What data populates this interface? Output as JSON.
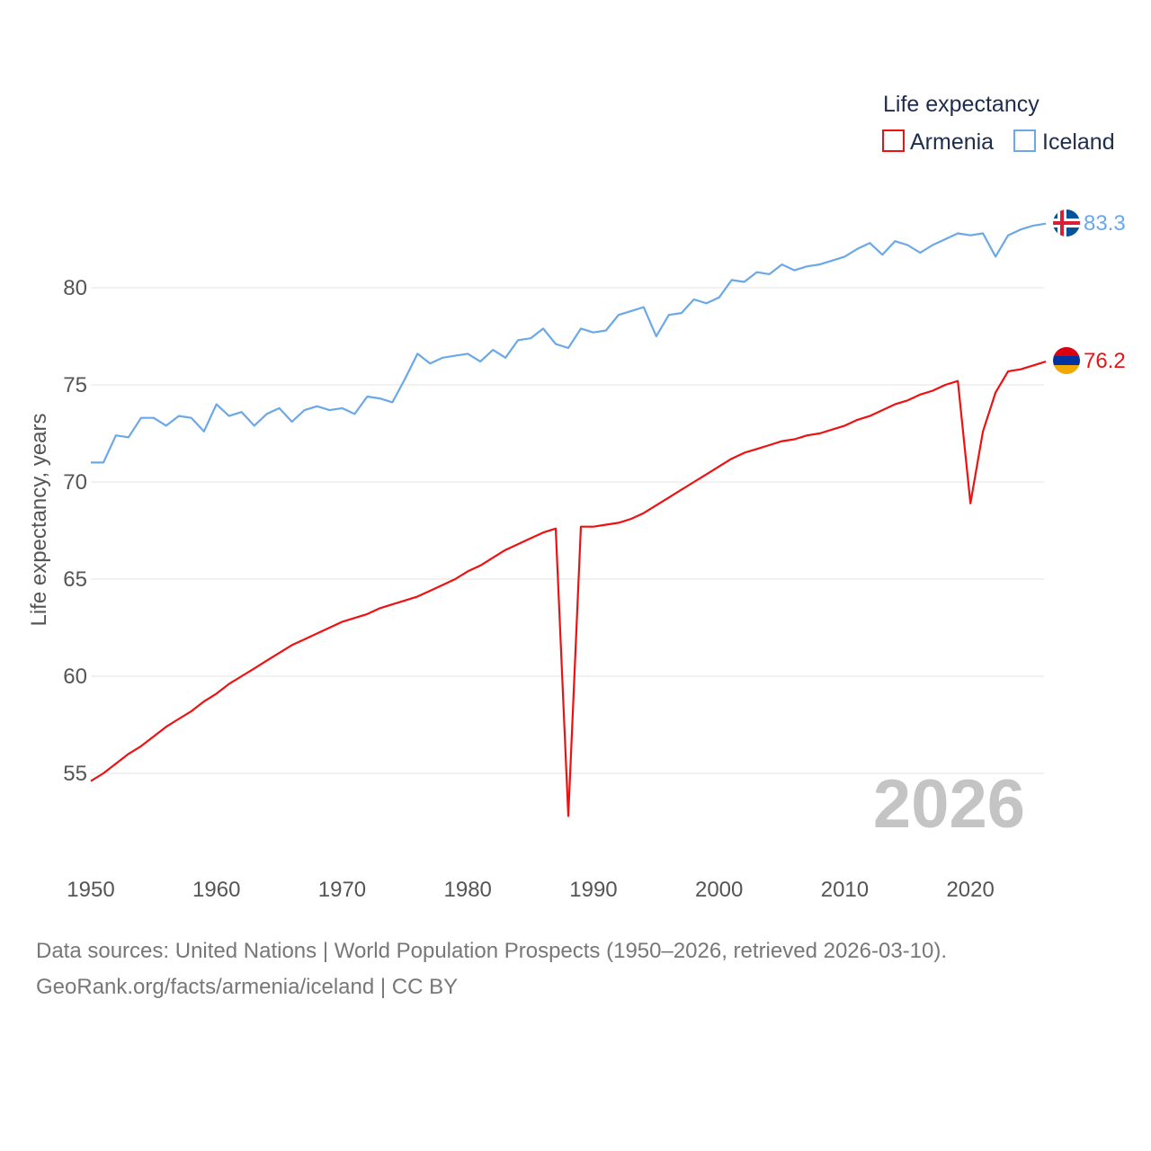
{
  "legend": {
    "title": "Life expectancy",
    "items": [
      {
        "name": "Armenia",
        "color": "#ee1111"
      },
      {
        "name": "Iceland",
        "color": "#6aa8e8"
      }
    ]
  },
  "year_watermark": "2026",
  "footer": {
    "line1": "Data sources: United Nations | World Population Prospects (1950–2026, retrieved 2026-03-10).",
    "line2": "GeoRank.org/facts/armenia/iceland | CC BY"
  },
  "end_labels": {
    "iceland": {
      "text": "83.3",
      "color": "#6aa8e8",
      "flag": "iceland-flag-icon"
    },
    "armenia": {
      "text": "76.2",
      "color": "#ee1111",
      "flag": "armenia-flag-icon"
    }
  },
  "chart_data": {
    "type": "line",
    "title": "Life expectancy",
    "xlabel": "",
    "ylabel": "Life expectancy, years",
    "xlim": [
      1950,
      2026
    ],
    "ylim": [
      51,
      85
    ],
    "x_ticks": [
      1950,
      1960,
      1970,
      1980,
      1990,
      2000,
      2010,
      2020
    ],
    "y_ticks": [
      55,
      60,
      65,
      70,
      75,
      80
    ],
    "grid": true,
    "legend_position": "top-right",
    "x": [
      1950,
      1951,
      1952,
      1953,
      1954,
      1955,
      1956,
      1957,
      1958,
      1959,
      1960,
      1961,
      1962,
      1963,
      1964,
      1965,
      1966,
      1967,
      1968,
      1969,
      1970,
      1971,
      1972,
      1973,
      1974,
      1975,
      1976,
      1977,
      1978,
      1979,
      1980,
      1981,
      1982,
      1983,
      1984,
      1985,
      1986,
      1987,
      1988,
      1989,
      1990,
      1991,
      1992,
      1993,
      1994,
      1995,
      1996,
      1997,
      1998,
      1999,
      2000,
      2001,
      2002,
      2003,
      2004,
      2005,
      2006,
      2007,
      2008,
      2009,
      2010,
      2011,
      2012,
      2013,
      2014,
      2015,
      2016,
      2017,
      2018,
      2019,
      2020,
      2021,
      2022,
      2023,
      2024,
      2025,
      2026
    ],
    "series": [
      {
        "name": "Armenia",
        "color": "#ee1111",
        "values": [
          54.6,
          55.0,
          55.5,
          56.0,
          56.4,
          56.9,
          57.4,
          57.8,
          58.2,
          58.7,
          59.1,
          59.6,
          60.0,
          60.4,
          60.8,
          61.2,
          61.6,
          61.9,
          62.2,
          62.5,
          62.8,
          63.0,
          63.2,
          63.5,
          63.7,
          63.9,
          64.1,
          64.4,
          64.7,
          65.0,
          65.4,
          65.7,
          66.1,
          66.5,
          66.8,
          67.1,
          67.4,
          67.6,
          52.8,
          67.7,
          67.7,
          67.8,
          67.9,
          68.1,
          68.4,
          68.8,
          69.2,
          69.6,
          70.0,
          70.4,
          70.8,
          71.2,
          71.5,
          71.7,
          71.9,
          72.1,
          72.2,
          72.4,
          72.5,
          72.7,
          72.9,
          73.2,
          73.4,
          73.7,
          74.0,
          74.2,
          74.5,
          74.7,
          75.0,
          75.2,
          68.9,
          72.6,
          74.6,
          75.7,
          75.8,
          76.0,
          76.2
        ]
      },
      {
        "name": "Iceland",
        "color": "#6aa8e8",
        "values": [
          71.0,
          71.0,
          72.4,
          72.3,
          73.3,
          73.3,
          72.9,
          73.4,
          73.3,
          72.6,
          74.0,
          73.4,
          73.6,
          72.9,
          73.5,
          73.8,
          73.1,
          73.7,
          73.9,
          73.7,
          73.8,
          73.5,
          74.4,
          74.3,
          74.1,
          75.3,
          76.6,
          76.1,
          76.4,
          76.5,
          76.6,
          76.2,
          76.8,
          76.4,
          77.3,
          77.4,
          77.9,
          77.1,
          76.9,
          77.9,
          77.7,
          77.8,
          78.6,
          78.8,
          79.0,
          77.5,
          78.6,
          78.7,
          79.4,
          79.2,
          79.5,
          80.4,
          80.3,
          80.8,
          80.7,
          81.2,
          80.9,
          81.1,
          81.2,
          81.4,
          81.6,
          82.0,
          82.3,
          81.7,
          82.4,
          82.2,
          81.8,
          82.2,
          82.5,
          82.8,
          82.7,
          82.8,
          81.6,
          82.7,
          83.0,
          83.2,
          83.3
        ]
      }
    ]
  }
}
